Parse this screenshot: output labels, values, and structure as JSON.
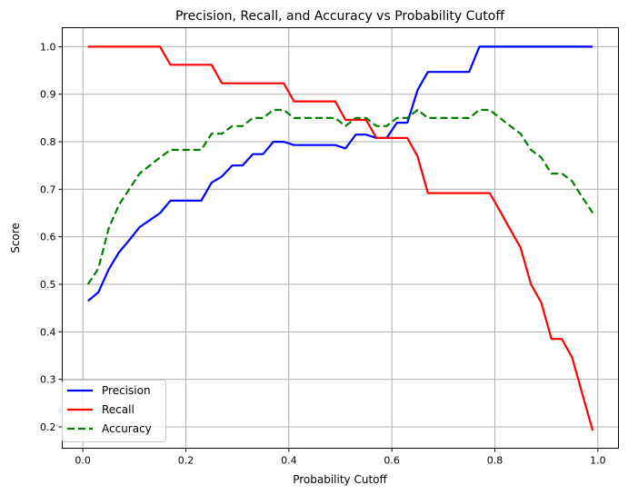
{
  "chart_data": {
    "type": "line",
    "title": "Precision, Recall, and Accuracy vs Probability Cutoff",
    "xlabel": "Probability Cutoff",
    "ylabel": "Score",
    "xlim": [
      -0.04,
      1.04
    ],
    "ylim": [
      0.155,
      1.04
    ],
    "grid": true,
    "legend_position": "lower-left",
    "x_ticks": [
      0.0,
      0.2,
      0.4,
      0.6,
      0.8,
      1.0
    ],
    "x_tick_labels": [
      "0.0",
      "0.2",
      "0.4",
      "0.6",
      "0.8",
      "1.0"
    ],
    "y_ticks": [
      0.2,
      0.3,
      0.4,
      0.5,
      0.6,
      0.7,
      0.8,
      0.9,
      1.0
    ],
    "y_tick_labels": [
      "0.2",
      "0.3",
      "0.4",
      "0.5",
      "0.6",
      "0.7",
      "0.8",
      "0.9",
      "1.0"
    ],
    "x": [
      0.01,
      0.03,
      0.05,
      0.07,
      0.09,
      0.11,
      0.13,
      0.15,
      0.17,
      0.19,
      0.21,
      0.23,
      0.25,
      0.27,
      0.29,
      0.31,
      0.33,
      0.35,
      0.37,
      0.39,
      0.41,
      0.43,
      0.45,
      0.47,
      0.49,
      0.51,
      0.53,
      0.55,
      0.57,
      0.59,
      0.61,
      0.63,
      0.65,
      0.67,
      0.69,
      0.71,
      0.73,
      0.75,
      0.77,
      0.79,
      0.81,
      0.83,
      0.85,
      0.87,
      0.89,
      0.91,
      0.93,
      0.95,
      0.97,
      0.99
    ],
    "series": [
      {
        "name": "Precision",
        "color": "#0000ff",
        "dash": "solid",
        "values": [
          0.465,
          0.483,
          0.531,
          0.567,
          0.593,
          0.62,
          0.635,
          0.65,
          0.676,
          0.676,
          0.676,
          0.676,
          0.714,
          0.727,
          0.75,
          0.75,
          0.774,
          0.774,
          0.8,
          0.8,
          0.793,
          0.793,
          0.793,
          0.793,
          0.793,
          0.786,
          0.815,
          0.815,
          0.808,
          0.808,
          0.84,
          0.84,
          0.909,
          0.947,
          0.947,
          0.947,
          0.947,
          0.947,
          1.0,
          1.0,
          1.0,
          1.0,
          1.0,
          1.0,
          1.0,
          1.0,
          1.0,
          1.0,
          1.0,
          1.0
        ]
      },
      {
        "name": "Recall",
        "color": "#ff0000",
        "dash": "solid",
        "values": [
          1.0,
          1.0,
          1.0,
          1.0,
          1.0,
          1.0,
          1.0,
          1.0,
          0.962,
          0.962,
          0.962,
          0.962,
          0.962,
          0.923,
          0.923,
          0.923,
          0.923,
          0.923,
          0.923,
          0.923,
          0.885,
          0.885,
          0.885,
          0.885,
          0.885,
          0.846,
          0.846,
          0.846,
          0.808,
          0.808,
          0.808,
          0.808,
          0.769,
          0.692,
          0.692,
          0.692,
          0.692,
          0.692,
          0.692,
          0.692,
          0.654,
          0.615,
          0.577,
          0.5,
          0.462,
          0.385,
          0.385,
          0.346,
          0.269,
          0.192
        ]
      },
      {
        "name": "Accuracy",
        "color": "#008000",
        "dash": "dashed",
        "values": [
          0.5,
          0.533,
          0.617,
          0.667,
          0.7,
          0.733,
          0.75,
          0.767,
          0.783,
          0.783,
          0.783,
          0.783,
          0.817,
          0.817,
          0.833,
          0.833,
          0.85,
          0.85,
          0.867,
          0.867,
          0.85,
          0.85,
          0.85,
          0.85,
          0.85,
          0.833,
          0.85,
          0.85,
          0.833,
          0.833,
          0.85,
          0.85,
          0.867,
          0.85,
          0.85,
          0.85,
          0.85,
          0.85,
          0.867,
          0.867,
          0.85,
          0.833,
          0.817,
          0.783,
          0.767,
          0.733,
          0.733,
          0.717,
          0.683,
          0.65
        ]
      }
    ]
  }
}
